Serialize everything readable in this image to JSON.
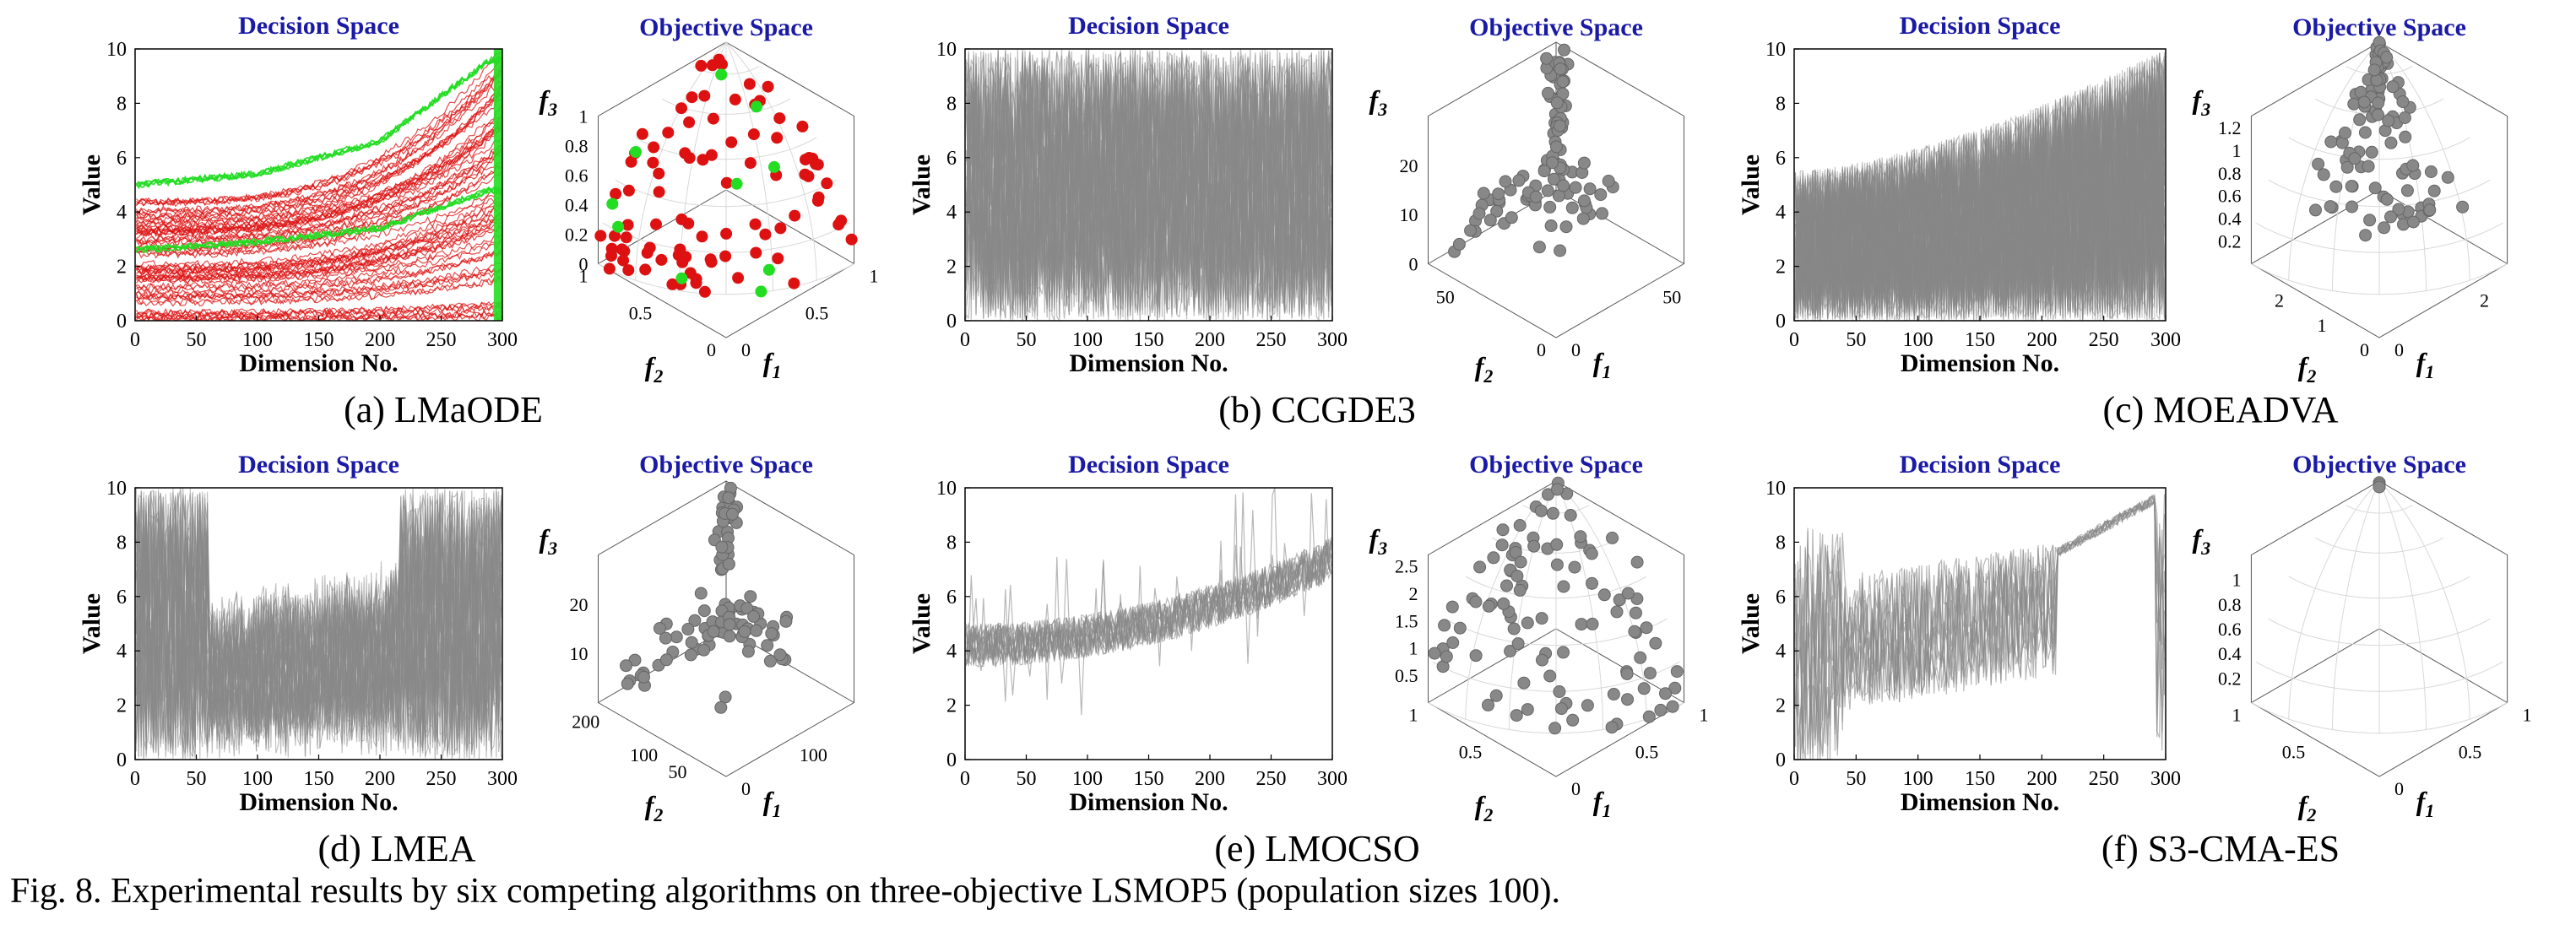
{
  "caption": "Fig. 8. Experimental results by six competing algorithms on three-objective LSMOP5 (population sizes 100).",
  "panels": [
    {
      "label": "(a) LMaODE"
    },
    {
      "label": "(b) CCGDE3"
    },
    {
      "label": "(c) MOEADVA"
    },
    {
      "label": "(d) LMEA"
    },
    {
      "label": "(e) LMOCSO"
    },
    {
      "label": "(f) S3-CMA-ES"
    }
  ],
  "colors": {
    "gray": "#888888",
    "red": "#dd1111",
    "green": "#22dd22",
    "title_blue": "#1a1aa6",
    "grid": "#d8d8d8"
  },
  "chart_data": [
    {
      "panel": "(a) LMaODE",
      "type": "line",
      "title": "Decision Space",
      "xlabel": "Dimension No.",
      "ylabel": "Value",
      "xlim": [
        0,
        300
      ],
      "ylim": [
        0,
        10
      ],
      "xticks": [
        0,
        50,
        100,
        150,
        200,
        250,
        300
      ],
      "yticks": [
        0,
        2,
        4,
        6,
        8,
        10
      ],
      "series": [
        {
          "color": "#dd1111",
          "desc": "many solutions",
          "start_range": [
            0,
            4.4
          ],
          "end_range": [
            0,
            9.5
          ]
        },
        {
          "color": "#22dd22",
          "desc": "selected solutions",
          "values_at": {
            "x": [
              0,
              100,
              200,
              290
            ],
            "upper": [
              5.0,
              5.4,
              6.6,
              9.6
            ],
            "middle": [
              2.6,
              2.9,
              3.4,
              4.8
            ]
          }
        }
      ]
    },
    {
      "panel": "(a) LMaODE",
      "type": "scatter",
      "title": "Objective Space",
      "xlabel": "f1",
      "ylabel": "f2",
      "zlabel": "f3",
      "xlim": [
        0,
        1
      ],
      "ylim": [
        0,
        1
      ],
      "zlim": [
        0,
        1
      ],
      "xticks": [
        0,
        0.5,
        1
      ],
      "yticks": [
        0,
        0.5,
        1
      ],
      "zticks": [
        0,
        0.2,
        0.4,
        0.6,
        0.8,
        1
      ],
      "series": [
        {
          "color": "#dd1111",
          "n": 90
        },
        {
          "color": "#22dd22",
          "n": 10
        }
      ],
      "sphere_grid": true
    },
    {
      "panel": "(b) CCGDE3",
      "type": "line",
      "title": "Decision Space",
      "xlabel": "Dimension No.",
      "ylabel": "Value",
      "xlim": [
        0,
        300
      ],
      "ylim": [
        0,
        10
      ],
      "xticks": [
        0,
        50,
        100,
        150,
        200,
        250,
        300
      ],
      "yticks": [
        0,
        2,
        4,
        6,
        8,
        10
      ],
      "series": [
        {
          "color": "#888888",
          "desc": "spans full range",
          "range": [
            0,
            10
          ]
        }
      ]
    },
    {
      "panel": "(b) CCGDE3",
      "type": "scatter",
      "title": "Objective Space",
      "xlabel": "f1",
      "ylabel": "f2",
      "zlabel": "f3",
      "xlim": [
        0,
        70
      ],
      "ylim": [
        0,
        70
      ],
      "zlim": [
        0,
        30
      ],
      "xticks": [
        0,
        50
      ],
      "yticks": [
        0,
        50
      ],
      "zticks": [
        0,
        10,
        20
      ],
      "series": [
        {
          "color": "#888888",
          "n": 100
        }
      ]
    },
    {
      "panel": "(c) MOEADVA",
      "type": "line",
      "title": "Decision Space",
      "xlabel": "Dimension No.",
      "ylabel": "Value",
      "xlim": [
        0,
        300
      ],
      "ylim": [
        0,
        10
      ],
      "xticks": [
        0,
        50,
        100,
        150,
        200,
        250,
        300
      ],
      "yticks": [
        0,
        2,
        4,
        6,
        8,
        10
      ],
      "series": [
        {
          "color": "#888888",
          "desc": "band widening",
          "start_range": [
            0,
            5.5
          ],
          "end_range": [
            0,
            10
          ]
        }
      ]
    },
    {
      "panel": "(c) MOEADVA",
      "type": "scatter",
      "title": "Objective Space",
      "xlabel": "f1",
      "ylabel": "f2",
      "zlabel": "f3",
      "xlim": [
        0,
        3
      ],
      "ylim": [
        0,
        3
      ],
      "zlim": [
        0,
        1.3
      ],
      "xticks": [
        0,
        2
      ],
      "yticks": [
        0,
        1,
        2
      ],
      "zticks": [
        0.2,
        0.4,
        0.6,
        0.8,
        1,
        1.2
      ],
      "series": [
        {
          "color": "#888888",
          "n": 100
        }
      ],
      "sphere_grid": true
    },
    {
      "panel": "(d) LMEA",
      "type": "line",
      "title": "Decision Space",
      "xlabel": "Dimension No.",
      "ylabel": "Value",
      "xlim": [
        0,
        300
      ],
      "ylim": [
        0,
        10
      ],
      "xticks": [
        0,
        50,
        100,
        150,
        200,
        250,
        300
      ],
      "yticks": [
        0,
        2,
        4,
        6,
        8,
        10
      ],
      "series": [
        {
          "color": "#888888",
          "desc": "full range 0-60 and 215-300; narrower band between",
          "mid_start_range": [
            0,
            6
          ],
          "mid_end_range": [
            0,
            7
          ]
        }
      ]
    },
    {
      "panel": "(d) LMEA",
      "type": "scatter",
      "title": "Objective Space",
      "xlabel": "f1",
      "ylabel": "f2",
      "zlabel": "f3",
      "xlim": [
        0,
        220
      ],
      "ylim": [
        0,
        220
      ],
      "zlim": [
        0,
        30
      ],
      "xticks": [
        0,
        100
      ],
      "yticks": [
        50,
        100,
        200
      ],
      "zticks": [
        10,
        20
      ],
      "series": [
        {
          "color": "#888888",
          "n": 100
        }
      ]
    },
    {
      "panel": "(e) LMOCSO",
      "type": "line",
      "title": "Decision Space",
      "xlabel": "Dimension No.",
      "ylabel": "Value",
      "xlim": [
        0,
        300
      ],
      "ylim": [
        0,
        10
      ],
      "xticks": [
        0,
        50,
        100,
        150,
        200,
        250,
        300
      ],
      "yticks": [
        0,
        2,
        4,
        6,
        8,
        10
      ],
      "series": [
        {
          "color": "#888888",
          "desc": "noisy rising band",
          "start_center": 4.2,
          "end_center": 7.4
        }
      ]
    },
    {
      "panel": "(e) LMOCSO",
      "type": "scatter",
      "title": "Objective Space",
      "xlabel": "f1",
      "ylabel": "f2",
      "zlabel": "f3",
      "xlim": [
        0,
        1
      ],
      "ylim": [
        0,
        1
      ],
      "zlim": [
        0,
        2.7
      ],
      "xticks": [
        0,
        0.5,
        1
      ],
      "yticks": [
        0.5,
        1
      ],
      "zticks": [
        0.5,
        1,
        1.5,
        2,
        2.5
      ],
      "series": [
        {
          "color": "#888888",
          "n": 100
        }
      ],
      "sphere_grid": true
    },
    {
      "panel": "(f) S3-CMA-ES",
      "type": "line",
      "title": "Decision Space",
      "xlabel": "Dimension No.",
      "ylabel": "Value",
      "xlim": [
        0,
        300
      ],
      "ylim": [
        0,
        10
      ],
      "xticks": [
        0,
        50,
        100,
        150,
        200,
        250,
        300
      ],
      "yticks": [
        0,
        2,
        4,
        6,
        8,
        10
      ],
      "series": [
        {
          "color": "#888888",
          "desc": "noisy then tight rising line after 210",
          "start_center": 4.0,
          "end_center": 9.6
        }
      ]
    },
    {
      "panel": "(f) S3-CMA-ES",
      "type": "scatter",
      "title": "Objective Space",
      "xlabel": "f1",
      "ylabel": "f2",
      "zlabel": "f3",
      "xlim": [
        0,
        1
      ],
      "ylim": [
        0,
        1
      ],
      "zlim": [
        0,
        1.2
      ],
      "xticks": [
        0,
        0.5,
        1
      ],
      "yticks": [
        0.5,
        1
      ],
      "zticks": [
        0.2,
        0.4,
        0.6,
        0.8,
        1
      ],
      "series": [
        {
          "color": "#888888",
          "n": 3
        }
      ],
      "sphere_grid": true
    }
  ]
}
